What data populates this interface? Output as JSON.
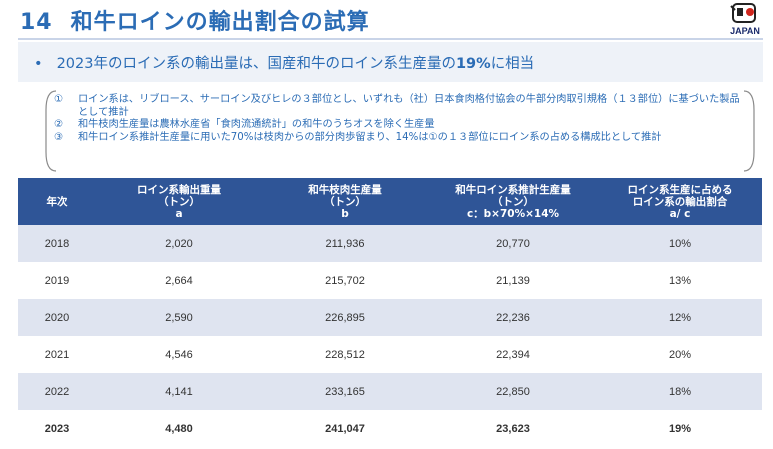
{
  "header": {
    "number": "14",
    "title": "和牛ロインの輸出割合の試算",
    "logo_text": "JAPAN"
  },
  "bullet": {
    "pre": "2023年のロイン系の輸出量は、国産和牛のロイン系生産量の",
    "highlight": "19%",
    "post": "に相当"
  },
  "notes": [
    {
      "mark": "①",
      "text": "ロイン系は、リブロース、サーロイン及びヒレの３部位とし、いずれも（社）日本食肉格付協会の牛部分肉取引規格（１３部位）に基づいた製品として推計"
    },
    {
      "mark": "②",
      "text": "和牛枝肉生産量は農林水産省「食肉流通統計」の和牛のうちオスを除く生産量"
    },
    {
      "mark": "③",
      "text": "和牛ロイン系推計生産量に用いた70%は枝肉からの部分肉歩留まり、14%は①の１３部位にロイン系の占める構成比として推計"
    }
  ],
  "table": {
    "headers": [
      {
        "l1": "年次",
        "l2": "",
        "l3": ""
      },
      {
        "l1": "ロイン系輸出重量",
        "l2": "（トン）",
        "l3": "a"
      },
      {
        "l1": "和牛枝肉生産量",
        "l2": "（トン）",
        "l3": "b"
      },
      {
        "l1": "和牛ロイン系推計生産量",
        "l2": "（トン）",
        "l3": "c：b×70%×14%"
      },
      {
        "l1": "ロイン系生産に占める",
        "l2": "ロイン系の輸出割合",
        "l3": "a/ c"
      }
    ],
    "rows": [
      {
        "year": "2018",
        "a": "2,020",
        "b": "211,936",
        "c": "20,770",
        "ratio": "10%"
      },
      {
        "year": "2019",
        "a": "2,664",
        "b": "215,702",
        "c": "21,139",
        "ratio": "13%"
      },
      {
        "year": "2020",
        "a": "2,590",
        "b": "226,895",
        "c": "22,236",
        "ratio": "12%"
      },
      {
        "year": "2021",
        "a": "4,546",
        "b": "228,512",
        "c": "22,394",
        "ratio": "20%"
      },
      {
        "year": "2022",
        "a": "4,141",
        "b": "233,165",
        "c": "22,850",
        "ratio": "18%"
      },
      {
        "year": "2023",
        "a": "4,480",
        "b": "241,047",
        "c": "23,623",
        "ratio": "19%"
      }
    ]
  },
  "colors": {
    "title": "#2b6cb5",
    "table_header": "#2f5597",
    "row_alt": "#dfe4f0"
  }
}
